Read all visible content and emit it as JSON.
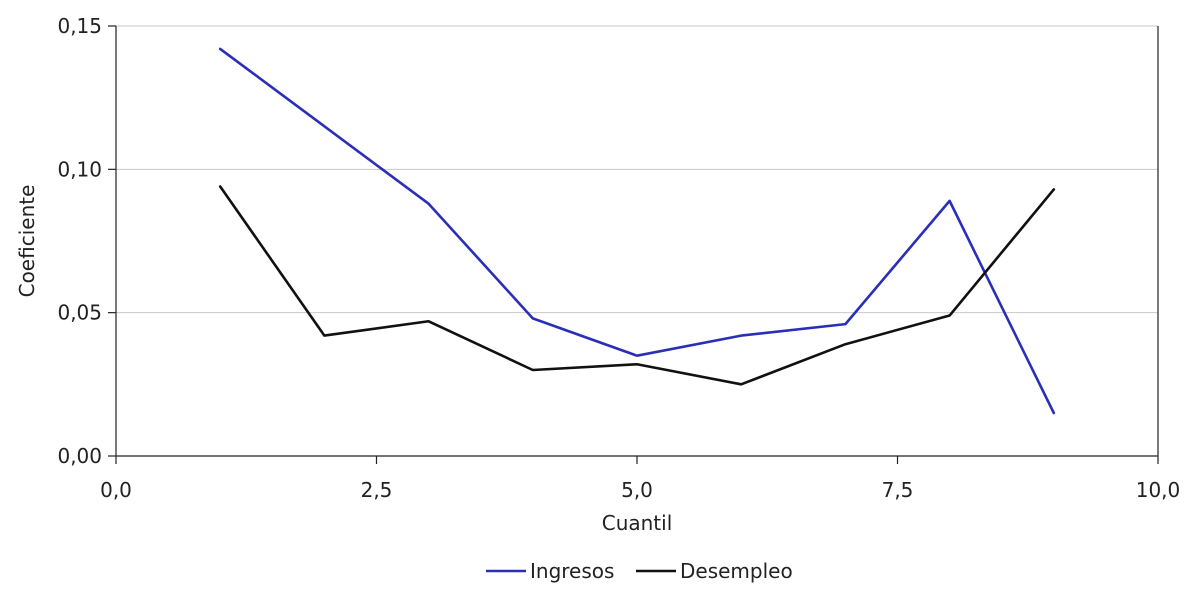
{
  "chart_data": {
    "type": "line",
    "xlabel": "Cuantil",
    "ylabel": "Coeficiente",
    "xlim": [
      0,
      10
    ],
    "ylim": [
      0,
      0.15
    ],
    "x_ticks": [
      "0,0",
      "2,5",
      "5,0",
      "7,5",
      "10,0"
    ],
    "x_tick_values": [
      0,
      2.5,
      5,
      7.5,
      10
    ],
    "y_ticks": [
      "0,00",
      "0,05",
      "0,10",
      "0,15"
    ],
    "y_tick_values": [
      0,
      0.05,
      0.1,
      0.15
    ],
    "grid": "horizontal",
    "legend_position": "bottom-center",
    "series": [
      {
        "name": "Ingresos",
        "color": "#2a2fb8",
        "x": [
          1,
          2,
          3,
          4,
          5,
          6,
          7,
          8,
          9
        ],
        "values": [
          0.142,
          0.115,
          0.088,
          0.048,
          0.035,
          0.042,
          0.046,
          0.089,
          0.015
        ]
      },
      {
        "name": "Desempleo",
        "color": "#111111",
        "x": [
          1,
          2,
          3,
          4,
          5,
          6,
          7,
          8,
          9
        ],
        "values": [
          0.094,
          0.042,
          0.047,
          0.03,
          0.032,
          0.025,
          0.039,
          0.049,
          0.093
        ]
      }
    ]
  }
}
